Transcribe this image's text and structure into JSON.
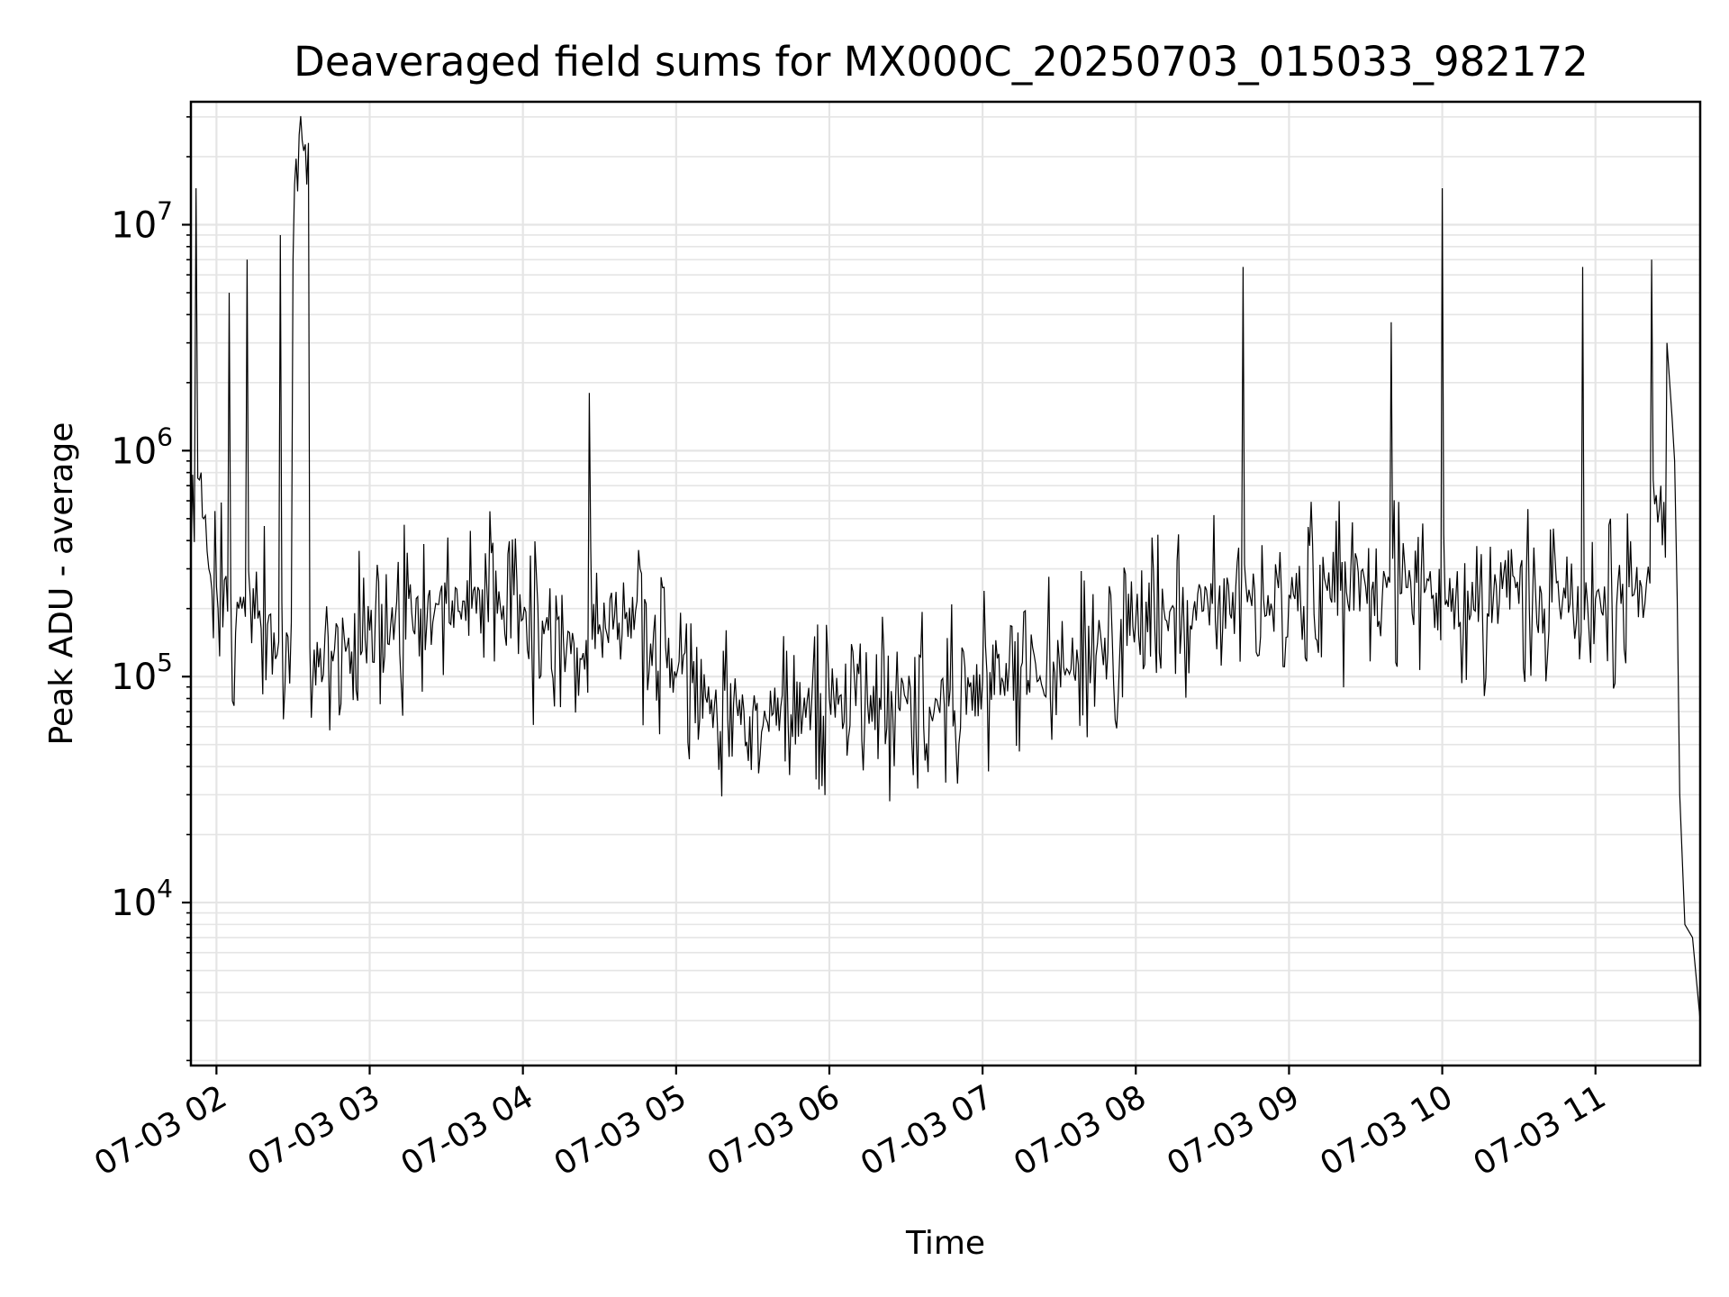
{
  "chart_data": {
    "type": "line",
    "title": "Deaveraged field sums for MX000C_20250703_015033_982172",
    "xlabel": "Time",
    "ylabel": "Peak ADU - average",
    "yscale": "log",
    "grid": true,
    "line_color": "#000000",
    "grid_color": "#e5e5e5",
    "xlim": [
      "2025-07-03 01:50",
      "2025-07-03 11:41"
    ],
    "ylim": [
      1900,
      35000000
    ],
    "x_ticks": [
      {
        "value": "2025-07-03 02:00",
        "label": "07-03 02"
      },
      {
        "value": "2025-07-03 03:00",
        "label": "07-03 03"
      },
      {
        "value": "2025-07-03 04:00",
        "label": "07-03 04"
      },
      {
        "value": "2025-07-03 05:00",
        "label": "07-03 05"
      },
      {
        "value": "2025-07-03 06:00",
        "label": "07-03 06"
      },
      {
        "value": "2025-07-03 07:00",
        "label": "07-03 07"
      },
      {
        "value": "2025-07-03 08:00",
        "label": "07-03 08"
      },
      {
        "value": "2025-07-03 09:00",
        "label": "07-03 09"
      },
      {
        "value": "2025-07-03 10:00",
        "label": "07-03 10"
      },
      {
        "value": "2025-07-03 11:00",
        "label": "07-03 11"
      }
    ],
    "y_ticks": [
      {
        "value": 10000,
        "base": "10",
        "exp": "4"
      },
      {
        "value": 100000,
        "base": "10",
        "exp": "5"
      },
      {
        "value": 1000000,
        "base": "10",
        "exp": "6"
      },
      {
        "value": 10000000,
        "base": "10",
        "exp": "7"
      }
    ],
    "series": [
      {
        "x": [
          "2025-07-03 01:50",
          "2025-07-03 01:52",
          "2025-07-03 01:54",
          "2025-07-03 01:55",
          "2025-07-03 01:57",
          "2025-07-03 02:00",
          "2025-07-03 02:05",
          "2025-07-03 02:10",
          "2025-07-03 02:12",
          "2025-07-03 02:15",
          "2025-07-03 02:20",
          "2025-07-03 02:25",
          "2025-07-03 02:28",
          "2025-07-03 02:30",
          "2025-07-03 02:36",
          "2025-07-03 02:40",
          "2025-07-03 02:45",
          "2025-07-03 02:50",
          "2025-07-03 03:00",
          "2025-07-03 03:10",
          "2025-07-03 03:20",
          "2025-07-03 03:30",
          "2025-07-03 03:40",
          "2025-07-03 03:50",
          "2025-07-03 04:00",
          "2025-07-03 04:10",
          "2025-07-03 04:20",
          "2025-07-03 04:26",
          "2025-07-03 04:30",
          "2025-07-03 04:40",
          "2025-07-03 04:50",
          "2025-07-03 05:00",
          "2025-07-03 05:15",
          "2025-07-03 05:30",
          "2025-07-03 05:45",
          "2025-07-03 06:00",
          "2025-07-03 06:15",
          "2025-07-03 06:30",
          "2025-07-03 06:45",
          "2025-07-03 07:00",
          "2025-07-03 07:15",
          "2025-07-03 07:30",
          "2025-07-03 07:45",
          "2025-07-03 08:00",
          "2025-07-03 08:15",
          "2025-07-03 08:30",
          "2025-07-03 08:42",
          "2025-07-03 08:50",
          "2025-07-03 09:00",
          "2025-07-03 09:15",
          "2025-07-03 09:30",
          "2025-07-03 09:40",
          "2025-07-03 09:50",
          "2025-07-03 10:00",
          "2025-07-03 10:10",
          "2025-07-03 10:20",
          "2025-07-03 10:30",
          "2025-07-03 10:40",
          "2025-07-03 10:50",
          "2025-07-03 10:55",
          "2025-07-03 11:00",
          "2025-07-03 11:10",
          "2025-07-03 11:15",
          "2025-07-03 11:18",
          "2025-07-03 11:20",
          "2025-07-03 11:22",
          "2025-07-03 11:25",
          "2025-07-03 11:28",
          "2025-07-03 11:30",
          "2025-07-03 11:31",
          "2025-07-03 11:32",
          "2025-07-03 11:33",
          "2025-07-03 11:35",
          "2025-07-03 11:38",
          "2025-07-03 11:41"
        ],
        "y": [
          300000,
          14500000,
          800000,
          500000,
          300000,
          250000,
          5000000,
          200000,
          7000000,
          180000,
          170000,
          9000000,
          150000,
          7000000,
          23000000,
          110000,
          130000,
          150000,
          160000,
          180000,
          200000,
          210000,
          200000,
          190000,
          180000,
          160000,
          140000,
          1800000,
          170000,
          180000,
          140000,
          100000,
          75000,
          70000,
          68000,
          80000,
          75000,
          80000,
          75000,
          95000,
          110000,
          120000,
          140000,
          180000,
          200000,
          210000,
          6500000,
          220000,
          230000,
          240000,
          250000,
          3700000,
          260000,
          14500000,
          240000,
          220000,
          210000,
          200000,
          210000,
          6500000,
          220000,
          210000,
          230000,
          250000,
          260000,
          7000000,
          550000,
          3000000,
          1400000,
          900000,
          220000,
          30000,
          8000,
          7000,
          3000
        ]
      }
    ]
  }
}
